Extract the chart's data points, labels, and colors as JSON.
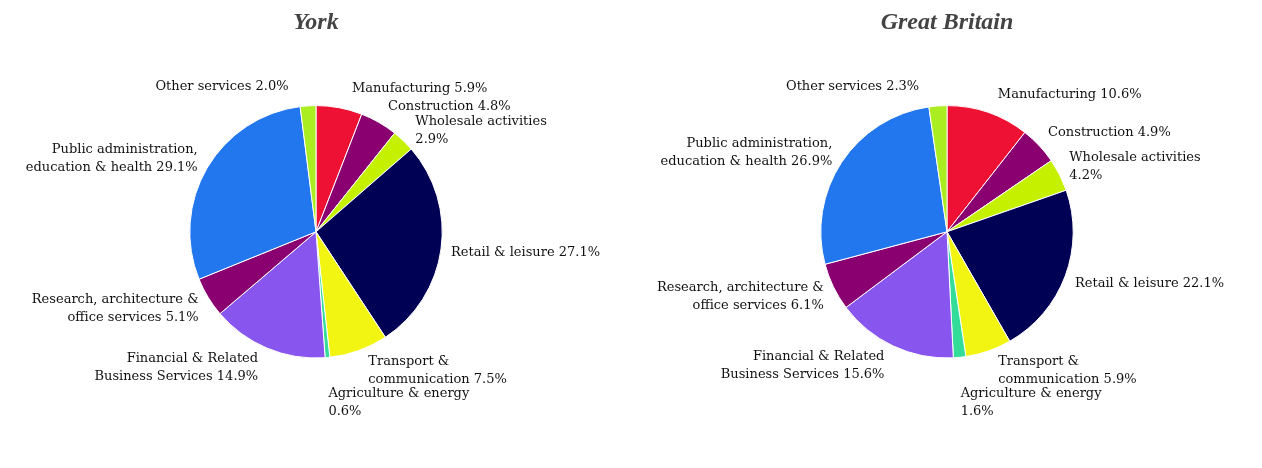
{
  "chart_data": [
    {
      "type": "pie",
      "title": "York",
      "categories": [
        "Manufacturing",
        "Construction",
        "Wholesale activities",
        "Retail & leisure",
        "Transport & communication",
        "Agriculture & energy",
        "Financial & Related Business Services",
        "Research, architecture & office services",
        "Public administration, education & health",
        "Other services"
      ],
      "values": [
        5.9,
        4.8,
        2.9,
        27.1,
        7.5,
        0.6,
        14.9,
        5.1,
        29.1,
        2.0
      ],
      "colors": [
        "#ee1133",
        "#8b0070",
        "#c5f000",
        "#000055",
        "#f2f512",
        "#33dd99",
        "#8855ee",
        "#8b0070",
        "#2277ee",
        "#aaee22"
      ],
      "value_labels": [
        "5.9%",
        "4.8%",
        "2.9%",
        "27.1%",
        "7.5%",
        "0.6%",
        "14.9%",
        "5.1%",
        "29.1%",
        "2.0%"
      ]
    },
    {
      "type": "pie",
      "title": "Great Britain",
      "categories": [
        "Manufacturing",
        "Construction",
        "Wholesale activities",
        "Retail & leisure",
        "Transport & communication",
        "Agriculture & energy",
        "Financial & Related Business Services",
        "Research, architecture & office services",
        "Public administration, education & health",
        "Other services"
      ],
      "values": [
        10.6,
        4.9,
        4.2,
        22.1,
        5.9,
        1.6,
        15.6,
        6.1,
        26.9,
        2.3
      ],
      "colors": [
        "#ee1133",
        "#8b0070",
        "#c5f000",
        "#000055",
        "#f2f512",
        "#33dd99",
        "#8855ee",
        "#8b0070",
        "#2277ee",
        "#aaee22"
      ],
      "value_labels": [
        "10.6%",
        "4.9%",
        "4.2%",
        "22.1%",
        "5.9%",
        "1.6%",
        "15.6%",
        "6.1%",
        "26.9%",
        "2.3%"
      ]
    }
  ]
}
